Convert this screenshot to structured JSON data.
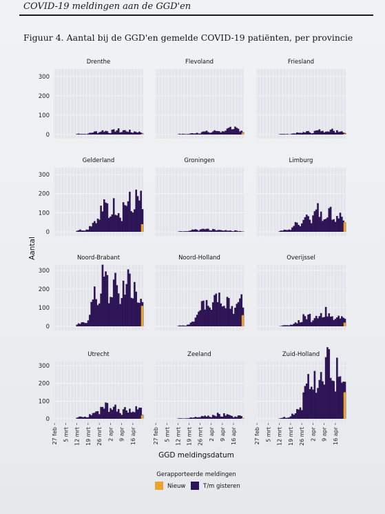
{
  "header": {
    "title": "COVID-19 meldingen aan de GGD'en"
  },
  "figure": {
    "caption": "Figuur 4. Aantal bij de GGD'en gemelde COVID-19 patiënten, per provincie"
  },
  "colors": {
    "new": "#E8A52A",
    "cumulative": "#2E1555",
    "panel_bg": "#E3E5EA",
    "grid": "#F6F7F9"
  },
  "chart_data": {
    "type": "bar",
    "stacked": true,
    "facets": [
      "Drenthe",
      "Flevoland",
      "Friesland",
      "Gelderland",
      "Groningen",
      "Limburg",
      "Noord-Brabant",
      "Noord-Holland",
      "Overijssel",
      "Utrecht",
      "Zeeland",
      "Zuid-Holland"
    ],
    "xlabel": "GGD meldingsdatum",
    "ylabel": "Aantal",
    "x_ticks": [
      "27 feb",
      "5 mrt",
      "12 mrt",
      "19 mrt",
      "26 mrt",
      "2 apr",
      "9 apr",
      "16 apr"
    ],
    "row_ylims": [
      [
        0,
        380
      ],
      [
        0,
        350
      ],
      [
        0,
        380
      ],
      [
        0,
        380
      ]
    ],
    "row_yticks": [
      [
        0,
        100,
        200,
        300
      ],
      [
        0,
        100,
        200,
        300
      ],
      [
        0,
        100,
        200,
        300
      ],
      [
        0,
        100,
        200,
        300
      ]
    ],
    "legend": {
      "title": "Gerapporteerde meldingen",
      "placement": "bottom",
      "items": [
        {
          "label": "Nieuw",
          "color": "#E8A52A"
        },
        {
          "label": "T/m gisteren",
          "color": "#2E1555"
        }
      ]
    },
    "series_ranges": {
      "Drenthe": [
        5,
        3,
        12,
        20,
        16,
        24,
        20,
        16,
        10
      ],
      "Flevoland": [
        3,
        3,
        7,
        14,
        15,
        20,
        25,
        35,
        20
      ],
      "Friesland": [
        3,
        2,
        7,
        14,
        14,
        22,
        25,
        22,
        14
      ],
      "Gelderland": [
        10,
        10,
        50,
        120,
        140,
        130,
        150,
        170,
        160
      ],
      "Groningen": [
        2,
        3,
        10,
        15,
        12,
        10,
        8,
        6,
        4
      ],
      "Limburg": [
        5,
        10,
        40,
        80,
        110,
        115,
        105,
        95,
        70
      ],
      "Noord-Brabant": [
        10,
        20,
        140,
        250,
        230,
        200,
        250,
        220,
        150
      ],
      "Noord-Holland": [
        3,
        5,
        40,
        130,
        160,
        170,
        160,
        150,
        120
      ],
      "Overijssel": [
        3,
        5,
        20,
        50,
        60,
        70,
        80,
        70,
        50
      ],
      "Utrecht": [
        10,
        10,
        30,
        70,
        80,
        60,
        55,
        60,
        50
      ],
      "Zeeland": [
        2,
        3,
        8,
        15,
        20,
        25,
        22,
        18,
        12
      ],
      "Zuid-Holland": [
        5,
        10,
        40,
        150,
        220,
        260,
        300,
        280,
        240
      ]
    },
    "new_last_day": {
      "Drenthe": 4,
      "Flevoland": 10,
      "Friesland": 5,
      "Gelderland": 40,
      "Groningen": 2,
      "Limburg": 50,
      "Noord-Brabant": 110,
      "Noord-Holland": 60,
      "Overijssel": 20,
      "Utrecht": 20,
      "Zeeland": 5,
      "Zuid-Holland": 150
    }
  }
}
